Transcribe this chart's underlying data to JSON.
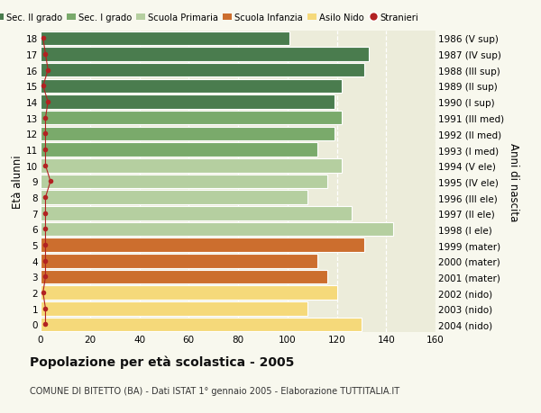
{
  "ages": [
    18,
    17,
    16,
    15,
    14,
    13,
    12,
    11,
    10,
    9,
    8,
    7,
    6,
    5,
    4,
    3,
    2,
    1,
    0
  ],
  "right_labels": [
    "1986 (V sup)",
    "1987 (IV sup)",
    "1988 (III sup)",
    "1989 (II sup)",
    "1990 (I sup)",
    "1991 (III med)",
    "1992 (II med)",
    "1993 (I med)",
    "1994 (V ele)",
    "1995 (IV ele)",
    "1996 (III ele)",
    "1997 (II ele)",
    "1998 (I ele)",
    "1999 (mater)",
    "2000 (mater)",
    "2001 (mater)",
    "2002 (nido)",
    "2003 (nido)",
    "2004 (nido)"
  ],
  "bar_values": [
    101,
    133,
    131,
    122,
    119,
    122,
    119,
    112,
    122,
    116,
    108,
    126,
    143,
    131,
    112,
    116,
    120,
    108,
    130
  ],
  "bar_colors": [
    "#4a7c4e",
    "#4a7c4e",
    "#4a7c4e",
    "#4a7c4e",
    "#4a7c4e",
    "#7aaa6b",
    "#7aaa6b",
    "#7aaa6b",
    "#b5cfa0",
    "#b5cfa0",
    "#b5cfa0",
    "#b5cfa0",
    "#b5cfa0",
    "#cc6e2e",
    "#cc6e2e",
    "#cc6e2e",
    "#f5d97a",
    "#f5d97a",
    "#f5d97a"
  ],
  "stranieri_values": [
    1,
    2,
    3,
    1,
    3,
    2,
    2,
    2,
    2,
    4,
    2,
    2,
    2,
    2,
    2,
    2,
    1,
    2,
    2
  ],
  "legend_labels": [
    "Sec. II grado",
    "Sec. I grado",
    "Scuola Primaria",
    "Scuola Infanzia",
    "Asilo Nido",
    "Stranieri"
  ],
  "legend_colors": [
    "#4a7c4e",
    "#7aaa6b",
    "#b5cfa0",
    "#cc6e2e",
    "#f5d97a",
    "#b22222"
  ],
  "ylabel_left": "Età alunni",
  "ylabel_right": "Anni di nascita",
  "title": "Popolazione per età scolastica - 2005",
  "subtitle": "COMUNE DI BITETTO (BA) - Dati ISTAT 1° gennaio 2005 - Elaborazione TUTTITALIA.IT",
  "xlim": [
    0,
    160
  ],
  "xticks": [
    0,
    20,
    40,
    60,
    80,
    100,
    120,
    140,
    160
  ],
  "background_color": "#f8f8ee",
  "plot_bg_color": "#ececda",
  "grid_color": "#ffffff",
  "bar_height": 0.88
}
